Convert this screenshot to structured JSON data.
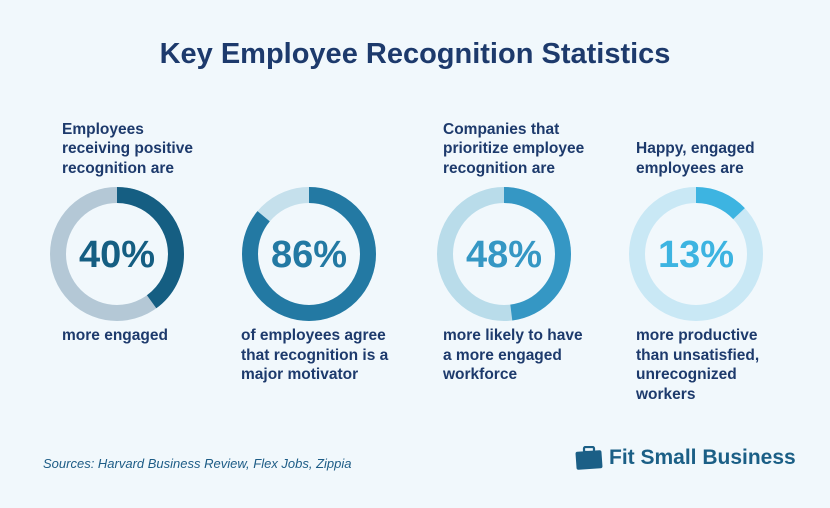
{
  "title": "Key Employee Recognition Statistics",
  "chart_data": {
    "type": "donut",
    "items": [
      {
        "value": 40,
        "label": "40%",
        "top_text": "Employees receiving positive recognition are",
        "bottom_text": "more engaged",
        "color": "#155e82",
        "track": "#b4c8d6"
      },
      {
        "value": 86,
        "label": "86%",
        "top_text": "",
        "bottom_text": "of employees agree that recognition is a major motivator",
        "color": "#2379a3",
        "track": "#c5e0ec"
      },
      {
        "value": 48,
        "label": "48%",
        "top_text": "Companies that prioritize employee recognition are",
        "bottom_text": "more likely to have a more engaged workforce",
        "color": "#3597c4",
        "track": "#b9dcea"
      },
      {
        "value": 13,
        "label": "13%",
        "top_text": "Happy, engaged employees are",
        "bottom_text": "more productive than unsatisfied, unrecognized workers",
        "color": "#3db4e1",
        "track": "#c9e8f5"
      }
    ]
  },
  "sources": "Sources: Harvard Business Review, Flex Jobs, Zippia",
  "logo": {
    "text": "Fit Small Business",
    "icon": "briefcase-icon"
  }
}
